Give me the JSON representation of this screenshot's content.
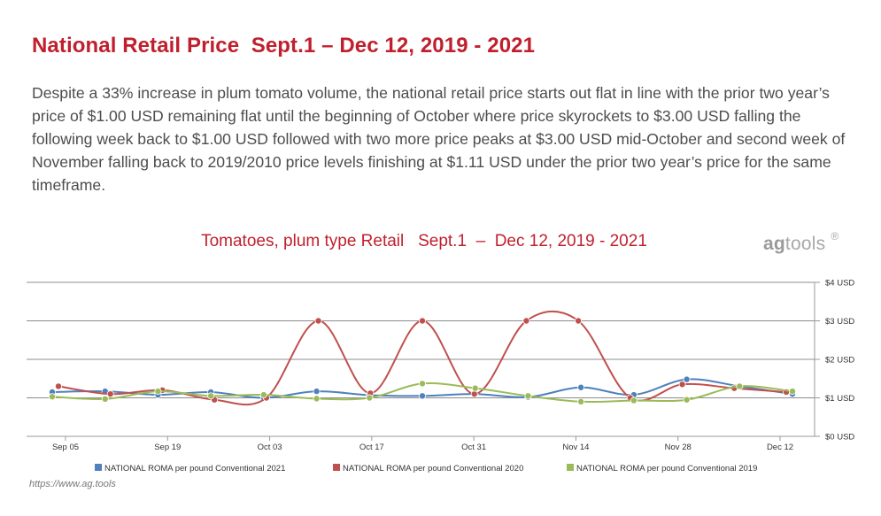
{
  "header": {
    "title": "National Retail Price  Sept.1 – Dec 12, 2019 - 2021",
    "description": "Despite a 33% increase in plum tomato volume, the national retail price starts out flat in line with the prior two year’s price of $1.00 USD remaining flat until the beginning of October where price skyrockets to $3.00 USD falling the following week back to $1.00 USD followed with two more price peaks at $3.00 USD mid-October and second week of November falling back to 2019/2010 price levels finishing at $1.11 USD under the prior two year’s price for the same timeframe."
  },
  "logo": {
    "brand_bold": "ag",
    "brand_light": "tools",
    "mark": "®"
  },
  "source": "https://www.ag.tools",
  "chart_data": {
    "type": "line",
    "title": "Tomatoes, plum type Retail   Sept.1  –  Dec 12, 2019 - 2021",
    "xlabel": "",
    "ylabel": "",
    "x_ticks": [
      "Sep 05",
      "Sep 19",
      "Oct 03",
      "Oct 17",
      "Oct 31",
      "Nov 14",
      "Nov 28",
      "Dec 12"
    ],
    "y_ticks": [
      "$0 USD",
      "$1 USD",
      "$2 USD",
      "$3 USD",
      "$4 USD"
    ],
    "ylim": [
      0,
      4
    ],
    "y_axis_side": "right",
    "grid": true,
    "legend_position": "bottom",
    "series": [
      {
        "name": "NATIONAL  ROMA per pound  Conventional 2021",
        "color": "#4f81bd",
        "values": [
          1.15,
          1.17,
          1.08,
          1.15,
          1.0,
          1.17,
          1.07,
          1.05,
          1.1,
          1.02,
          1.27,
          1.08,
          1.48,
          1.3,
          1.1
        ]
      },
      {
        "name": "NATIONAL  ROMA per pound  Conventional 2020",
        "color": "#c0504d",
        "values": [
          1.3,
          1.1,
          1.2,
          0.95,
          1.0,
          3.0,
          1.12,
          3.0,
          1.1,
          3.0,
          3.0,
          1.0,
          1.35,
          1.25,
          1.15
        ]
      },
      {
        "name": "NATIONAL  ROMA per pound  Conventional 2019",
        "color": "#9bbb59",
        "values": [
          1.03,
          0.97,
          1.17,
          1.05,
          1.08,
          0.98,
          1.0,
          1.37,
          1.25,
          1.05,
          0.9,
          0.93,
          0.95,
          1.3,
          1.17
        ]
      }
    ]
  }
}
